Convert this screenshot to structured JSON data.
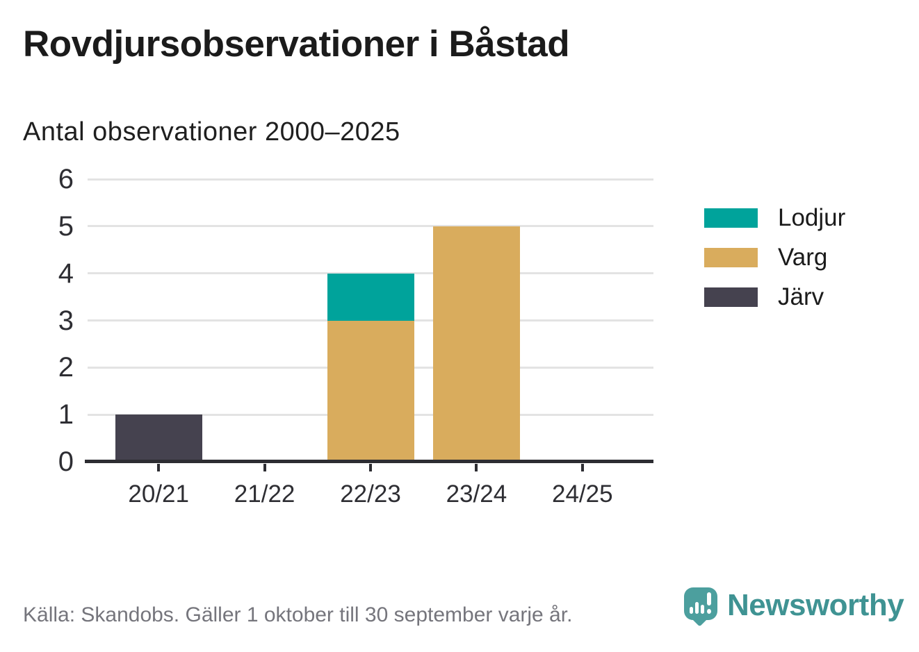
{
  "header": {
    "title": "Rovdjursobservationer i Båstad",
    "subtitle": "Antal observationer 2000–2025"
  },
  "chart_data": {
    "type": "bar",
    "stacked": true,
    "title": "Rovdjursobservationer i Båstad",
    "subtitle": "Antal observationer 2000–2025",
    "categories": [
      "20/21",
      "21/22",
      "22/23",
      "23/24",
      "24/25"
    ],
    "series": [
      {
        "name": "Lodjur",
        "color": "#00a39b",
        "values": [
          0,
          0,
          1,
          0,
          0
        ]
      },
      {
        "name": "Varg",
        "color": "#d9ac5d",
        "values": [
          0,
          0,
          3,
          5,
          0
        ]
      },
      {
        "name": "Järv",
        "color": "#45424f",
        "values": [
          1,
          0,
          0,
          0,
          0
        ]
      }
    ],
    "stack_order_bottom_to_top": [
      "Järv",
      "Varg",
      "Lodjur"
    ],
    "xlabel": "",
    "ylabel": "",
    "ylim": [
      0,
      6
    ],
    "yticks": [
      0,
      1,
      2,
      3,
      4,
      5,
      6
    ],
    "grid": true,
    "legend_position": "right"
  },
  "footer": {
    "source": "Källa: Skandobs. Gäller 1 oktober till 30 september varje år.",
    "brand": "Newsworthy"
  },
  "colors": {
    "lodjur_teal": "#00a39b",
    "varg_gold": "#d9ac5d",
    "jarv_dark": "#45424f",
    "brand_teal": "#3f9393",
    "brand_icon_teal": "#4c9f9e"
  }
}
